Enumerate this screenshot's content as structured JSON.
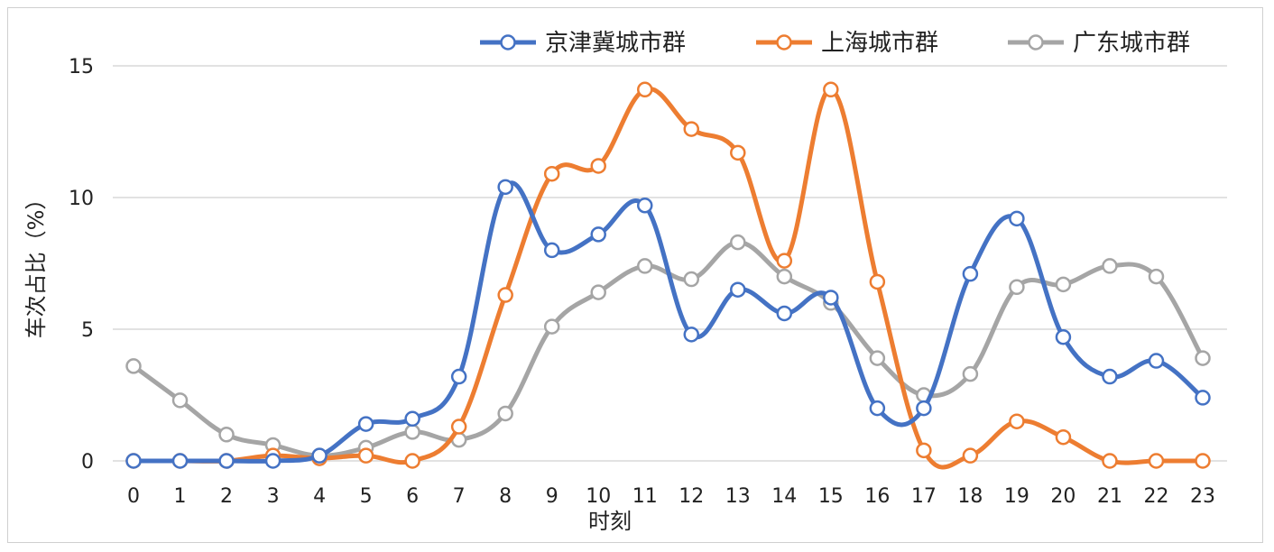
{
  "chart_data": {
    "type": "line",
    "title": "",
    "xlabel": "时刻",
    "ylabel": "车次占比（%）",
    "x": [
      0,
      1,
      2,
      3,
      4,
      5,
      6,
      7,
      8,
      9,
      10,
      11,
      12,
      13,
      14,
      15,
      16,
      17,
      18,
      19,
      20,
      21,
      22,
      23
    ],
    "ylim": [
      0,
      15
    ],
    "yticks": [
      0,
      5,
      10,
      15
    ],
    "grid": true,
    "legend_position": "top-right",
    "series": [
      {
        "name": "京津冀城市群",
        "color": "#4472c4",
        "values": [
          0,
          0,
          0,
          0,
          0.2,
          1.4,
          1.6,
          3.2,
          10.4,
          8.0,
          8.6,
          9.7,
          4.8,
          6.5,
          5.6,
          6.2,
          2.0,
          2.0,
          7.1,
          9.2,
          4.7,
          3.2,
          3.8,
          2.4
        ]
      },
      {
        "name": "上海城市群",
        "color": "#ed7d31",
        "values": [
          0,
          0,
          0,
          0.2,
          0.1,
          0.2,
          0,
          1.3,
          6.3,
          10.9,
          11.2,
          14.1,
          12.6,
          11.7,
          7.6,
          14.1,
          6.8,
          0.4,
          0.2,
          1.5,
          0.9,
          0,
          0,
          0
        ]
      },
      {
        "name": "广东城市群",
        "color": "#a5a5a5",
        "values": [
          3.6,
          2.3,
          1.0,
          0.6,
          0.2,
          0.5,
          1.1,
          0.8,
          1.8,
          5.1,
          6.4,
          7.4,
          6.9,
          8.3,
          7.0,
          6.0,
          3.9,
          2.5,
          3.3,
          6.6,
          6.7,
          7.4,
          7.0,
          3.9
        ]
      }
    ]
  }
}
